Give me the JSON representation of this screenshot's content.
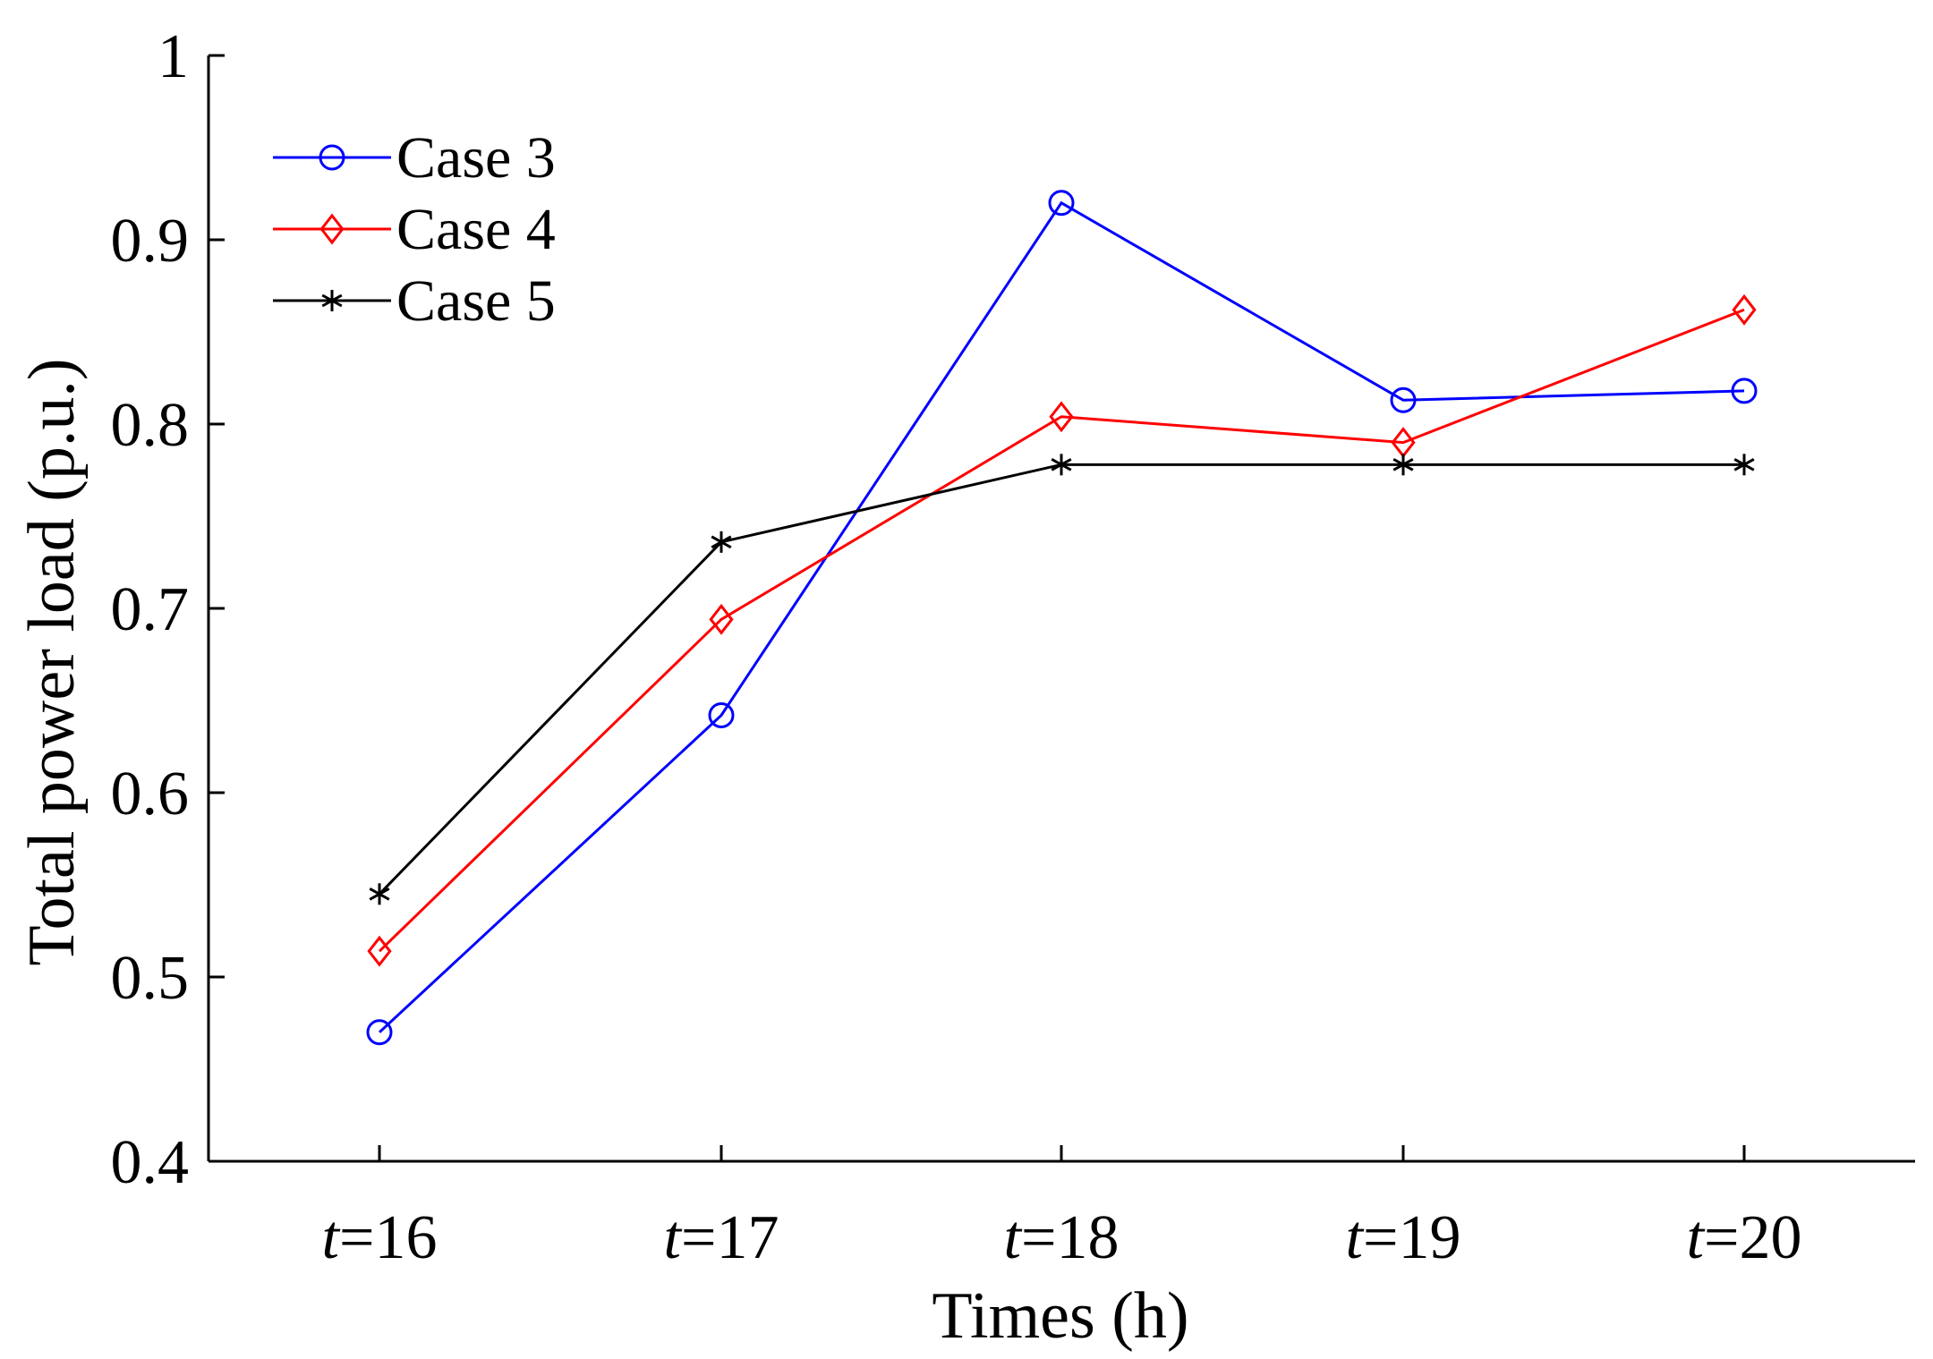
{
  "chart_data": {
    "type": "line",
    "title": "",
    "xlabel": "Times (h)",
    "ylabel": "Total power load (p.u.)",
    "categories": [
      {
        "prefix": "t",
        "suffix": "=16"
      },
      {
        "prefix": "t",
        "suffix": "=17"
      },
      {
        "prefix": "t",
        "suffix": "=18"
      },
      {
        "prefix": "t",
        "suffix": "=19"
      },
      {
        "prefix": "t",
        "suffix": "=20"
      }
    ],
    "ylim": [
      0.4,
      1.0
    ],
    "yticks": [
      0.4,
      0.5,
      0.6,
      0.7,
      0.8,
      0.9,
      1.0
    ],
    "ytick_labels": [
      "0.4",
      "0.5",
      "0.6",
      "0.7",
      "0.8",
      "0.9",
      "1"
    ],
    "grid": false,
    "legend_position": "top-left",
    "series": [
      {
        "name": "Case 3",
        "color": "#0000ff",
        "marker": "circle",
        "values": [
          0.47,
          0.642,
          0.92,
          0.813,
          0.818
        ]
      },
      {
        "name": "Case 4",
        "color": "#ff0000",
        "marker": "diamond",
        "values": [
          0.514,
          0.694,
          0.804,
          0.79,
          0.862
        ]
      },
      {
        "name": "Case 5",
        "color": "#000000",
        "marker": "asterisk",
        "values": [
          0.545,
          0.736,
          0.778,
          0.778,
          0.778
        ]
      }
    ]
  }
}
